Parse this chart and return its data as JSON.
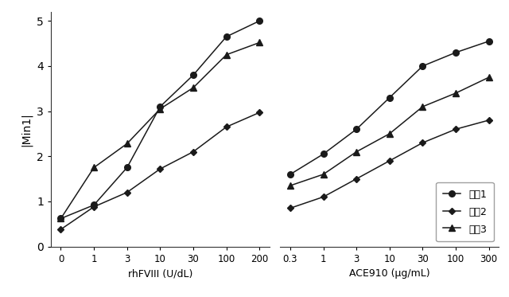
{
  "left_xtick_labels": [
    "0",
    "1",
    "3",
    "10",
    "30",
    "100",
    "200"
  ],
  "left_x_positions": [
    0,
    1,
    2,
    3,
    4,
    5,
    6
  ],
  "left_series1_y": [
    0.62,
    0.92,
    1.75,
    3.1,
    3.8,
    4.65,
    5.0
  ],
  "left_series2_y": [
    0.38,
    0.88,
    1.2,
    1.72,
    2.1,
    2.65,
    2.97
  ],
  "left_series3_y": [
    0.62,
    1.75,
    2.28,
    3.05,
    3.52,
    4.25,
    4.52
  ],
  "right_xtick_labels": [
    "0.3",
    "1",
    "3",
    "10",
    "30",
    "100",
    "300"
  ],
  "right_x_positions": [
    0,
    1,
    2,
    3,
    4,
    5,
    6
  ],
  "right_series1_y": [
    1.6,
    2.05,
    2.6,
    3.3,
    4.0,
    4.3,
    4.55
  ],
  "right_series2_y": [
    0.85,
    1.1,
    1.5,
    1.9,
    2.3,
    2.6,
    2.8
  ],
  "right_series3_y": [
    1.35,
    1.6,
    2.1,
    2.5,
    3.1,
    3.4,
    3.75
  ],
  "ylabel": "|Min1|",
  "left_xlabel": "rhFVIII (U/dL)",
  "right_xlabel": "ACE910 (μg/mL)",
  "legend_labels": [
    "試蔡1",
    "試蔡2",
    "試蔡3"
  ],
  "legend_markers": [
    "o",
    "D",
    "^"
  ],
  "line_color": "#1a1a1a",
  "background_color": "#ffffff",
  "ylim": [
    0,
    5.2
  ],
  "yticks": [
    0,
    1,
    2,
    3,
    4,
    5
  ]
}
